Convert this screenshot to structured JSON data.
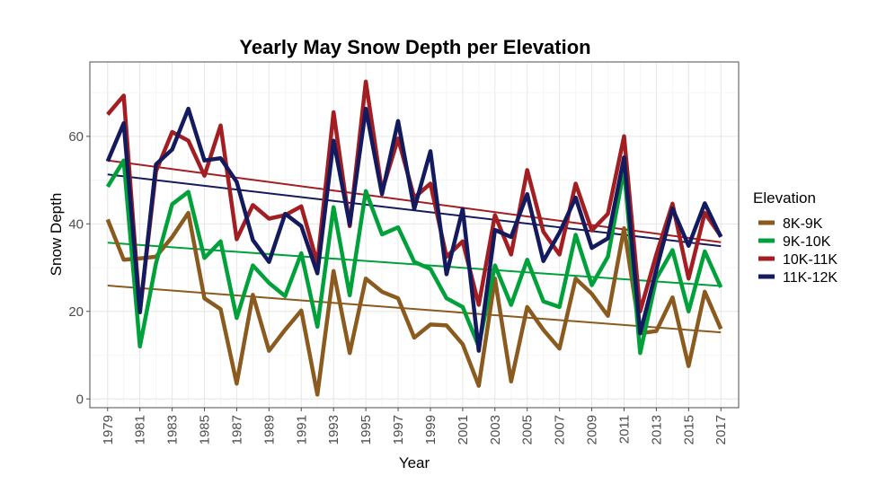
{
  "chart_data": {
    "type": "line",
    "title": "Yearly May Snow Depth per Elevation",
    "xlabel": "Year",
    "ylabel": "Snow Depth",
    "xlim": [
      1977.9,
      2018.1
    ],
    "ylim": [
      -2,
      77
    ],
    "x_ticks": [
      1979,
      1981,
      1983,
      1985,
      1987,
      1989,
      1991,
      1993,
      1995,
      1997,
      1999,
      2001,
      2003,
      2005,
      2007,
      2009,
      2011,
      2013,
      2015,
      2017
    ],
    "y_ticks": [
      0,
      20,
      40,
      60
    ],
    "grid": true,
    "legend_title": "Elevation",
    "legend_position": "right",
    "x": [
      1979,
      1980,
      1981,
      1982,
      1983,
      1984,
      1985,
      1986,
      1987,
      1988,
      1989,
      1990,
      1991,
      1992,
      1993,
      1994,
      1995,
      1996,
      1997,
      1998,
      1999,
      2000,
      2001,
      2002,
      2003,
      2004,
      2005,
      2006,
      2007,
      2008,
      2009,
      2010,
      2011,
      2012,
      2013,
      2014,
      2015,
      2016,
      2017
    ],
    "series": [
      {
        "name": "8K-9K",
        "color": "#8B5A1E",
        "values": [
          41,
          31.8,
          32.1,
          32.5,
          37,
          42.5,
          23,
          20.5,
          3.5,
          23.8,
          11,
          15.8,
          20.2,
          1,
          29.2,
          10.5,
          27.5,
          24.5,
          23,
          14,
          17,
          16.8,
          12.5,
          3,
          27.5,
          4,
          21,
          15.8,
          11.5,
          27.5,
          24,
          19,
          39,
          15,
          15.5,
          23.2,
          7.5,
          24.5,
          16
        ],
        "trend": [
          25.9,
          15.2
        ]
      },
      {
        "name": "9K-10K",
        "color": "#00A13A",
        "values": [
          48.5,
          54.5,
          12,
          31,
          44.5,
          47.3,
          32.2,
          36,
          18.5,
          30.5,
          26.5,
          23.5,
          33.3,
          16.5,
          43.8,
          23.7,
          47.5,
          37.6,
          39.2,
          31.3,
          29.7,
          23,
          21,
          12,
          30.5,
          21.5,
          31.8,
          22.3,
          21,
          37.5,
          26,
          32.5,
          52.5,
          10.5,
          27.5,
          34,
          20,
          33.7,
          25.5
        ],
        "trend": [
          35.7,
          25.8
        ]
      },
      {
        "name": "10K-11K",
        "color": "#A31E22",
        "values": [
          65,
          69.3,
          20,
          52,
          61,
          59,
          51,
          62.5,
          36.5,
          44.3,
          41.2,
          42,
          44,
          31,
          65.5,
          39.5,
          72.5,
          47.5,
          59.5,
          46,
          49.2,
          32.5,
          36,
          21.5,
          42,
          33,
          52.3,
          38.2,
          33,
          49.2,
          38.5,
          42.3,
          60,
          20,
          33,
          44.6,
          27.5,
          42.5,
          37.2
        ],
        "trend": [
          54.5,
          35.8
        ]
      },
      {
        "name": "11K-12K",
        "color": "#131A5E",
        "values": [
          54.3,
          63,
          19.8,
          53.6,
          57,
          66.3,
          54.5,
          55,
          49.6,
          36.3,
          31.3,
          42.3,
          39.5,
          28.7,
          59,
          39.8,
          66.3,
          46.8,
          63.5,
          43.4,
          56.6,
          28.5,
          43.4,
          11,
          38.6,
          37,
          46.8,
          31.5,
          38,
          46,
          34.5,
          36.7,
          55.2,
          15,
          29.5,
          43.5,
          35,
          44.7,
          37
        ],
        "trend": [
          51.3,
          34.9
        ]
      }
    ]
  }
}
